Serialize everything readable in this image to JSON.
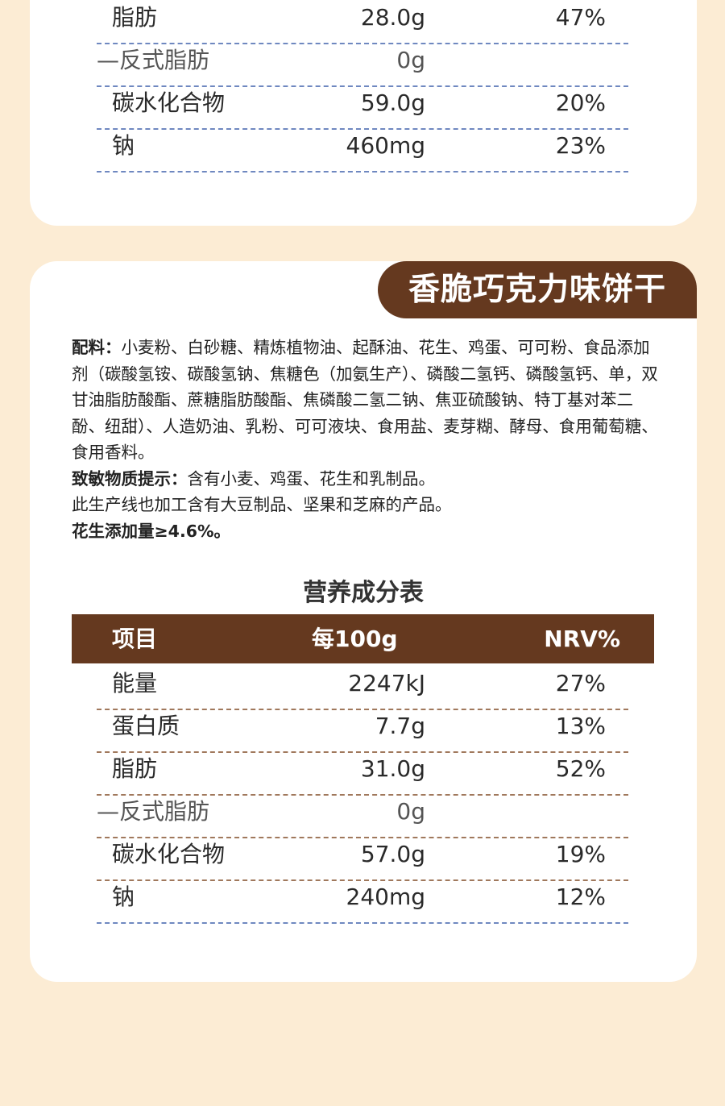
{
  "top_table": {
    "rows": [
      {
        "name": "脂肪",
        "value": "28.0g",
        "nrv": "47%"
      },
      {
        "name": "—反式脂肪",
        "value": "0g",
        "nrv": ""
      },
      {
        "name": "碳水化合物",
        "value": "59.0g",
        "nrv": "20%"
      },
      {
        "name": "钠",
        "value": "460mg",
        "nrv": "23%"
      }
    ]
  },
  "product": {
    "title": "香脆巧克力味饼干",
    "ingredients_label": "配料：",
    "ingredients_text": "小麦粉、白砂糖、精炼植物油、起酥油、花生、鸡蛋、可可粉、食品添加剂（碳酸氢铵、碳酸氢钠、焦糖色（加氨生产）、磷酸二氢钙、磷酸氢钙、单，双甘油脂肪酸酯、蔗糖脂肪酸酯、焦磷酸二氢二钠、焦亚硫酸钠、特丁基对苯二酚、纽甜）、人造奶油、乳粉、可可液块、食用盐、麦芽糊、酵母、食用葡萄糖、食用香料。",
    "allergen_label": "致敏物质提示：",
    "allergen_text": "含有小麦、鸡蛋、花生和乳制品。",
    "production_note": "此生产线也加工含有大豆制品、坚果和芝麻的产品。",
    "peanut_note": "花生添加量≥4.6%。"
  },
  "nutrition": {
    "title": "营养成分表",
    "headers": {
      "name": "项目",
      "value": "每100g",
      "nrv": "NRV%"
    },
    "rows": [
      {
        "name": "能量",
        "value": "2247kJ",
        "nrv": "27%"
      },
      {
        "name": "蛋白质",
        "value": "7.7g",
        "nrv": "13%"
      },
      {
        "name": "脂肪",
        "value": "31.0g",
        "nrv": "52%"
      },
      {
        "name": "—反式脂肪",
        "value": "0g",
        "nrv": ""
      },
      {
        "name": "碳水化合物",
        "value": "57.0g",
        "nrv": "19%"
      },
      {
        "name": "钠",
        "value": "240mg",
        "nrv": "12%"
      }
    ]
  },
  "colors": {
    "page_background": "#fcecd4",
    "card_background": "#ffffff",
    "accent_brown": "#65391f",
    "divider_blue": "#6f88c0"
  }
}
